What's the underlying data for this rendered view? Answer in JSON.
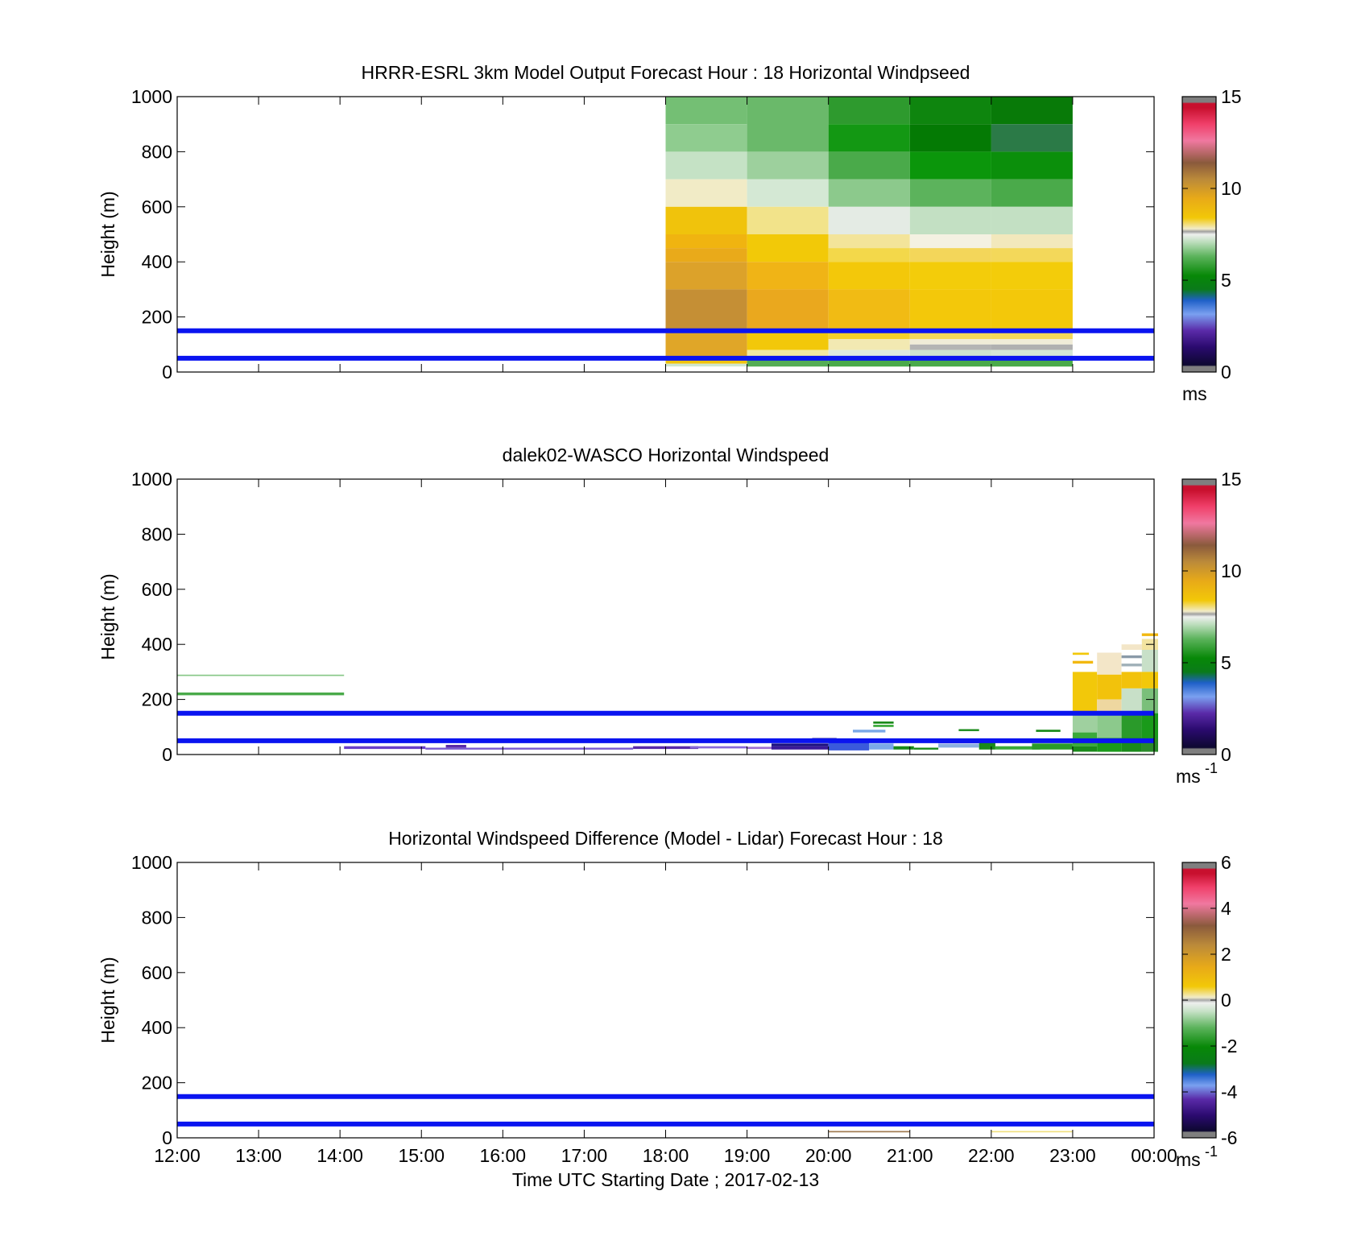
{
  "chart_data": [
    {
      "type": "heatmap",
      "title": "HRRR-ESRL 3km Model Output   Forecast Hour : 18 Horizontal Windpseed",
      "ylabel": "Height (m)",
      "xlabel": "",
      "ylim": [
        0,
        1000
      ],
      "y_ticks": [
        "0",
        "200",
        "400",
        "600",
        "800",
        "1000"
      ],
      "x_ticks": [
        "12:00",
        "13:00",
        "14:00",
        "15:00",
        "16:00",
        "17:00",
        "18:00",
        "19:00",
        "20:00",
        "21:00",
        "22:00",
        "23:00",
        "00:00"
      ],
      "colorbar": {
        "min": 0,
        "max": 15,
        "ticks": [
          "0",
          "5",
          "10",
          "15"
        ],
        "unit": "ms",
        "unit_sup": ""
      },
      "reference_lines_m": [
        50,
        150
      ],
      "reference_line_color": "#0a14f0",
      "cells": [
        {
          "t0": 6,
          "t1": 7,
          "z0": 1000,
          "z1": 900,
          "c": "#74bf74"
        },
        {
          "t0": 6,
          "t1": 7,
          "z0": 900,
          "z1": 800,
          "c": "#8fcc8f"
        },
        {
          "t0": 6,
          "t1": 7,
          "z0": 800,
          "z1": 700,
          "c": "#c5e2c5"
        },
        {
          "t0": 6,
          "t1": 7,
          "z0": 700,
          "z1": 600,
          "c": "#f1ebc6"
        },
        {
          "t0": 6,
          "t1": 7,
          "z0": 600,
          "z1": 500,
          "c": "#f0c30c"
        },
        {
          "t0": 6,
          "t1": 7,
          "z0": 500,
          "z1": 450,
          "c": "#f0b410"
        },
        {
          "t0": 6,
          "t1": 7,
          "z0": 450,
          "z1": 400,
          "c": "#e9aa1a"
        },
        {
          "t0": 6,
          "t1": 7,
          "z0": 400,
          "z1": 300,
          "c": "#dca22a"
        },
        {
          "t0": 6,
          "t1": 7,
          "z0": 300,
          "z1": 150,
          "c": "#c58f35"
        },
        {
          "t0": 6,
          "t1": 7,
          "z0": 150,
          "z1": 50,
          "c": "#e0a628"
        },
        {
          "t0": 6,
          "t1": 7,
          "z0": 50,
          "z1": 30,
          "c": "#f0c30c"
        },
        {
          "t0": 6,
          "t1": 7,
          "z0": 30,
          "z1": 20,
          "c": "#cfe6cf"
        },
        {
          "t0": 7,
          "t1": 8,
          "z0": 1000,
          "z1": 800,
          "c": "#6ab96a"
        },
        {
          "t0": 7,
          "t1": 8,
          "z0": 800,
          "z1": 700,
          "c": "#9dd09d"
        },
        {
          "t0": 7,
          "t1": 8,
          "z0": 700,
          "z1": 600,
          "c": "#d4e8d4"
        },
        {
          "t0": 7,
          "t1": 8,
          "z0": 600,
          "z1": 500,
          "c": "#f2e38a"
        },
        {
          "t0": 7,
          "t1": 8,
          "z0": 500,
          "z1": 400,
          "c": "#f2c908"
        },
        {
          "t0": 7,
          "t1": 8,
          "z0": 400,
          "z1": 300,
          "c": "#f0b416"
        },
        {
          "t0": 7,
          "t1": 8,
          "z0": 300,
          "z1": 150,
          "c": "#eaa81e"
        },
        {
          "t0": 7,
          "t1": 8,
          "z0": 150,
          "z1": 80,
          "c": "#f2c80a"
        },
        {
          "t0": 7,
          "t1": 8,
          "z0": 80,
          "z1": 50,
          "c": "#f3e9a0"
        },
        {
          "t0": 7,
          "t1": 8,
          "z0": 50,
          "z1": 20,
          "c": "#55ad55"
        },
        {
          "t0": 8,
          "t1": 9,
          "z0": 1000,
          "z1": 900,
          "c": "#2e9a2e"
        },
        {
          "t0": 8,
          "t1": 9,
          "z0": 900,
          "z1": 800,
          "c": "#139813"
        },
        {
          "t0": 8,
          "t1": 9,
          "z0": 800,
          "z1": 700,
          "c": "#4aaa4a"
        },
        {
          "t0": 8,
          "t1": 9,
          "z0": 700,
          "z1": 600,
          "c": "#8cc98c"
        },
        {
          "t0": 8,
          "t1": 9,
          "z0": 600,
          "z1": 500,
          "c": "#e4ebe4"
        },
        {
          "t0": 8,
          "t1": 9,
          "z0": 500,
          "z1": 450,
          "c": "#f3e49a"
        },
        {
          "t0": 8,
          "t1": 9,
          "z0": 450,
          "z1": 400,
          "c": "#f3d84a"
        },
        {
          "t0": 8,
          "t1": 9,
          "z0": 400,
          "z1": 300,
          "c": "#f3c80a"
        },
        {
          "t0": 8,
          "t1": 9,
          "z0": 300,
          "z1": 150,
          "c": "#f1bb14"
        },
        {
          "t0": 8,
          "t1": 9,
          "z0": 150,
          "z1": 120,
          "c": "#f3d02a"
        },
        {
          "t0": 8,
          "t1": 9,
          "z0": 120,
          "z1": 80,
          "c": "#f2e9b2"
        },
        {
          "t0": 8,
          "t1": 9,
          "z0": 80,
          "z1": 50,
          "c": "#dfe8df"
        },
        {
          "t0": 8,
          "t1": 9,
          "z0": 50,
          "z1": 20,
          "c": "#4aaa4a"
        },
        {
          "t0": 9,
          "t1": 10,
          "z0": 1000,
          "z1": 900,
          "c": "#0e850e"
        },
        {
          "t0": 9,
          "t1": 10,
          "z0": 900,
          "z1": 800,
          "c": "#047a04"
        },
        {
          "t0": 9,
          "t1": 10,
          "z0": 800,
          "z1": 700,
          "c": "#0b960b"
        },
        {
          "t0": 9,
          "t1": 10,
          "z0": 700,
          "z1": 600,
          "c": "#5cb35c"
        },
        {
          "t0": 9,
          "t1": 10,
          "z0": 600,
          "z1": 500,
          "c": "#c3e0c3"
        },
        {
          "t0": 9,
          "t1": 10,
          "z0": 500,
          "z1": 450,
          "c": "#f4f1e2"
        },
        {
          "t0": 9,
          "t1": 10,
          "z0": 450,
          "z1": 400,
          "c": "#f3d65a"
        },
        {
          "t0": 9,
          "t1": 10,
          "z0": 400,
          "z1": 300,
          "c": "#f3cc0a"
        },
        {
          "t0": 9,
          "t1": 10,
          "z0": 300,
          "z1": 150,
          "c": "#f3c80a"
        },
        {
          "t0": 9,
          "t1": 10,
          "z0": 150,
          "z1": 120,
          "c": "#f3d85a"
        },
        {
          "t0": 9,
          "t1": 10,
          "z0": 120,
          "z1": 100,
          "c": "#f0ecd8"
        },
        {
          "t0": 9,
          "t1": 10,
          "z0": 100,
          "z1": 80,
          "c": "#b4b4b4"
        },
        {
          "t0": 9,
          "t1": 10,
          "z0": 80,
          "z1": 50,
          "c": "#cfe3cf"
        },
        {
          "t0": 9,
          "t1": 10,
          "z0": 50,
          "z1": 20,
          "c": "#4aaa4a"
        },
        {
          "t0": 10,
          "t1": 11,
          "z0": 1000,
          "z1": 900,
          "c": "#087a08"
        },
        {
          "t0": 10,
          "t1": 11,
          "z0": 900,
          "z1": 800,
          "c": "#2b7a47"
        },
        {
          "t0": 10,
          "t1": 11,
          "z0": 800,
          "z1": 700,
          "c": "#0b8f0b"
        },
        {
          "t0": 10,
          "t1": 11,
          "z0": 700,
          "z1": 600,
          "c": "#4aaa4a"
        },
        {
          "t0": 10,
          "t1": 11,
          "z0": 600,
          "z1": 500,
          "c": "#c3e0c3"
        },
        {
          "t0": 10,
          "t1": 11,
          "z0": 500,
          "z1": 450,
          "c": "#f2e8bc"
        },
        {
          "t0": 10,
          "t1": 11,
          "z0": 450,
          "z1": 400,
          "c": "#f3d85a"
        },
        {
          "t0": 10,
          "t1": 11,
          "z0": 400,
          "z1": 300,
          "c": "#f3cc0a"
        },
        {
          "t0": 10,
          "t1": 11,
          "z0": 300,
          "z1": 150,
          "c": "#f3c80a"
        },
        {
          "t0": 10,
          "t1": 11,
          "z0": 150,
          "z1": 120,
          "c": "#f3d85a"
        },
        {
          "t0": 10,
          "t1": 11,
          "z0": 120,
          "z1": 100,
          "c": "#f0ecd8"
        },
        {
          "t0": 10,
          "t1": 11,
          "z0": 100,
          "z1": 80,
          "c": "#b0b0b0"
        },
        {
          "t0": 10,
          "t1": 11,
          "z0": 80,
          "z1": 50,
          "c": "#d5e6d5"
        },
        {
          "t0": 10,
          "t1": 11,
          "z0": 50,
          "z1": 20,
          "c": "#4aaa4a"
        }
      ]
    },
    {
      "type": "heatmap",
      "title": "dalek02-WASCO  Horizontal Windspeed",
      "ylabel": "Height (m)",
      "xlabel": "",
      "ylim": [
        0,
        1000
      ],
      "y_ticks": [
        "0",
        "200",
        "400",
        "600",
        "800",
        "1000"
      ],
      "x_ticks": [
        "12:00",
        "13:00",
        "14:00",
        "15:00",
        "16:00",
        "17:00",
        "18:00",
        "19:00",
        "20:00",
        "21:00",
        "22:00",
        "23:00",
        "00:00"
      ],
      "colorbar": {
        "min": 0,
        "max": 15,
        "ticks": [
          "0",
          "5",
          "10",
          "15"
        ],
        "unit": "ms",
        "unit_sup": "-1"
      },
      "reference_lines_m": [
        50,
        150
      ],
      "reference_line_color": "#0a14f0",
      "cells": [
        {
          "t0": 0,
          "t1": 2.05,
          "z0": 290,
          "z1": 285,
          "c": "#88c888"
        },
        {
          "t0": 0,
          "t1": 2.05,
          "z0": 225,
          "z1": 215,
          "c": "#4aaa4a"
        },
        {
          "t0": 2.05,
          "t1": 3.05,
          "z0": 30,
          "z1": 20,
          "c": "#6a3fc8"
        },
        {
          "t0": 3.3,
          "t1": 3.55,
          "z0": 35,
          "z1": 25,
          "c": "#5a2aa8"
        },
        {
          "t0": 3.05,
          "t1": 5.6,
          "z0": 25,
          "z1": 18,
          "c": "#7a5ad0"
        },
        {
          "t0": 5.6,
          "t1": 6.4,
          "z0": 30,
          "z1": 20,
          "c": "#5a2aa8"
        },
        {
          "t0": 6.3,
          "t1": 7.0,
          "z0": 30,
          "z1": 22,
          "c": "#8a6ad8"
        },
        {
          "t0": 7.0,
          "t1": 7.4,
          "z0": 28,
          "z1": 20,
          "c": "#a070d0"
        },
        {
          "t0": 7.3,
          "t1": 8.0,
          "z0": 40,
          "z1": 30,
          "c": "#1a1080"
        },
        {
          "t0": 7.3,
          "t1": 8.0,
          "z0": 30,
          "z1": 18,
          "c": "#3a1a98"
        },
        {
          "t0": 7.8,
          "t1": 8.1,
          "z0": 60,
          "z1": 50,
          "c": "#1a1080"
        },
        {
          "t0": 8.0,
          "t1": 8.3,
          "z0": 30,
          "z1": 18,
          "c": "#7a5ad0"
        },
        {
          "t0": 8.0,
          "t1": 8.5,
          "z0": 50,
          "z1": 15,
          "c": "#3a5adc"
        },
        {
          "t0": 8.3,
          "t1": 8.7,
          "z0": 90,
          "z1": 80,
          "c": "#7aa8e8"
        },
        {
          "t0": 8.55,
          "t1": 8.8,
          "z0": 120,
          "z1": 112,
          "c": "#1a8a1a"
        },
        {
          "t0": 8.55,
          "t1": 8.8,
          "z0": 108,
          "z1": 100,
          "c": "#3aaa3a"
        },
        {
          "t0": 8.5,
          "t1": 8.8,
          "z0": 40,
          "z1": 18,
          "c": "#7aa8e8"
        },
        {
          "t0": 8.8,
          "t1": 9.05,
          "z0": 30,
          "z1": 18,
          "c": "#1a8a1a"
        },
        {
          "t0": 9.05,
          "t1": 9.35,
          "z0": 25,
          "z1": 18,
          "c": "#1a8a1a"
        },
        {
          "t0": 9.35,
          "t1": 9.85,
          "z0": 50,
          "z1": 40,
          "c": "#3a5adc"
        },
        {
          "t0": 9.35,
          "t1": 9.85,
          "z0": 38,
          "z1": 25,
          "c": "#8ab0e0"
        },
        {
          "t0": 9.6,
          "t1": 9.85,
          "z0": 92,
          "z1": 85,
          "c": "#1a8a1a"
        },
        {
          "t0": 9.85,
          "t1": 10.05,
          "z0": 45,
          "z1": 18,
          "c": "#1a8a1a"
        },
        {
          "t0": 10.05,
          "t1": 10.6,
          "z0": 30,
          "z1": 18,
          "c": "#3aaa3a"
        },
        {
          "t0": 10.55,
          "t1": 10.85,
          "z0": 90,
          "z1": 82,
          "c": "#1a8a1a"
        },
        {
          "t0": 10.5,
          "t1": 11.0,
          "z0": 40,
          "z1": 18,
          "c": "#2a9a2a"
        },
        {
          "t0": 11.0,
          "t1": 11.3,
          "z0": 300,
          "z1": 150,
          "c": "#f2c80a"
        },
        {
          "t0": 11.0,
          "t1": 11.2,
          "z0": 370,
          "z1": 362,
          "c": "#f2c80a"
        },
        {
          "t0": 11.0,
          "t1": 11.25,
          "z0": 340,
          "z1": 330,
          "c": "#f2b810"
        },
        {
          "t0": 11.0,
          "t1": 11.3,
          "z0": 150,
          "z1": 80,
          "c": "#9fd09f"
        },
        {
          "t0": 11.0,
          "t1": 11.3,
          "z0": 80,
          "z1": 30,
          "c": "#3aaa3a"
        },
        {
          "t0": 11.0,
          "t1": 11.3,
          "z0": 30,
          "z1": 10,
          "c": "#1a8a1a"
        },
        {
          "t0": 11.3,
          "t1": 11.6,
          "z0": 370,
          "z1": 290,
          "c": "#f3e6c8"
        },
        {
          "t0": 11.3,
          "t1": 11.6,
          "z0": 290,
          "z1": 200,
          "c": "#f2c20c"
        },
        {
          "t0": 11.3,
          "t1": 11.6,
          "z0": 200,
          "z1": 150,
          "c": "#eed7a0"
        },
        {
          "t0": 11.3,
          "t1": 11.6,
          "z0": 150,
          "z1": 60,
          "c": "#8cc98c"
        },
        {
          "t0": 11.3,
          "t1": 11.6,
          "z0": 60,
          "z1": 10,
          "c": "#1a9a1a"
        },
        {
          "t0": 11.6,
          "t1": 11.85,
          "z0": 400,
          "z1": 380,
          "c": "#f3e6c8"
        },
        {
          "t0": 11.6,
          "t1": 11.85,
          "z0": 360,
          "z1": 350,
          "c": "#8a9aa8"
        },
        {
          "t0": 11.6,
          "t1": 11.85,
          "z0": 330,
          "z1": 320,
          "c": "#a0b0b8"
        },
        {
          "t0": 11.6,
          "t1": 11.85,
          "z0": 300,
          "z1": 240,
          "c": "#f2c20c"
        },
        {
          "t0": 11.6,
          "t1": 11.85,
          "z0": 240,
          "z1": 150,
          "c": "#c8e0c8"
        },
        {
          "t0": 11.6,
          "t1": 11.85,
          "z0": 150,
          "z1": 60,
          "c": "#2a9a2a"
        },
        {
          "t0": 11.6,
          "t1": 11.85,
          "z0": 60,
          "z1": 10,
          "c": "#1a8a1a"
        },
        {
          "t0": 11.85,
          "t1": 12.05,
          "z0": 440,
          "z1": 430,
          "c": "#f2b810"
        },
        {
          "t0": 11.85,
          "t1": 12.05,
          "z0": 420,
          "z1": 380,
          "c": "#f3e4a0"
        },
        {
          "t0": 11.85,
          "t1": 12.05,
          "z0": 380,
          "z1": 300,
          "c": "#c8e0c8"
        },
        {
          "t0": 11.85,
          "t1": 12.05,
          "z0": 300,
          "z1": 240,
          "c": "#f2c80a"
        },
        {
          "t0": 11.85,
          "t1": 12.05,
          "z0": 240,
          "z1": 150,
          "c": "#7abf7a"
        },
        {
          "t0": 11.85,
          "t1": 12.05,
          "z0": 150,
          "z1": 60,
          "c": "#1a9a1a"
        },
        {
          "t0": 11.85,
          "t1": 12.05,
          "z0": 60,
          "z1": 10,
          "c": "#2a8a2a"
        }
      ]
    },
    {
      "type": "heatmap",
      "title": "Horizontal Windspeed Difference (Model - Lidar) Forecast Hour : 18",
      "ylabel": "Height (m)",
      "xlabel": "Time UTC  Starting Date ; 2017-02-13",
      "ylim": [
        0,
        1000
      ],
      "y_ticks": [
        "0",
        "200",
        "400",
        "600",
        "800",
        "1000"
      ],
      "x_ticks": [
        "12:00",
        "13:00",
        "14:00",
        "15:00",
        "16:00",
        "17:00",
        "18:00",
        "19:00",
        "20:00",
        "21:00",
        "22:00",
        "23:00",
        "00:00"
      ],
      "colorbar": {
        "min": -6,
        "max": 6,
        "ticks": [
          "-6",
          "-4",
          "-2",
          "0",
          "2",
          "4",
          "6"
        ],
        "unit": "ms",
        "unit_sup": "-1"
      },
      "reference_lines_m": [
        50,
        150
      ],
      "reference_line_color": "#0a14f0",
      "cells": [
        {
          "t0": 8,
          "t1": 9,
          "z0": 25,
          "z1": 20,
          "c": "#a07a50"
        },
        {
          "t0": 10,
          "t1": 11,
          "z0": 25,
          "z1": 20,
          "c": "#f0e080"
        }
      ]
    }
  ]
}
